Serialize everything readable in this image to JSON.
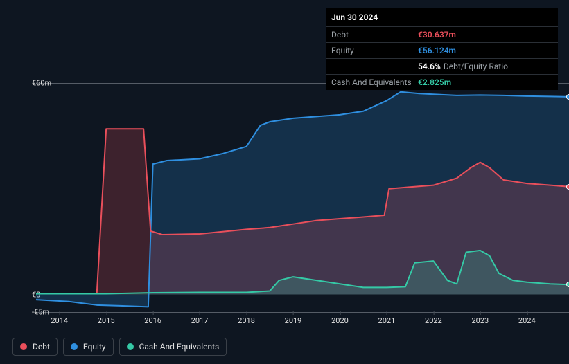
{
  "tooltip": {
    "title": "Jun 30 2024",
    "rows": [
      {
        "label": "Debt",
        "value": "€30.637m",
        "color": "#e94f5b"
      },
      {
        "label": "Equity",
        "value": "€56.124m",
        "color": "#2f8fe0"
      },
      {
        "label": "",
        "value": "54.6%",
        "suffix": "Debt/Equity Ratio",
        "color": "#ffffff"
      },
      {
        "label": "Cash And Equivalents",
        "value": "€2.825m",
        "color": "#35c9a6"
      }
    ]
  },
  "chart": {
    "type": "area",
    "background": "#0e1621",
    "grid_color": "#555c66",
    "axis_color": "#444b55",
    "x_domain": [
      2013.5,
      2024.9
    ],
    "y_domain": [
      -5,
      60
    ],
    "y_ticks": [
      {
        "v": 60,
        "label": "€60m"
      },
      {
        "v": 0,
        "label": "€0"
      },
      {
        "v": -5,
        "label": "-€5m"
      }
    ],
    "x_ticks": [
      2014,
      2015,
      2016,
      2017,
      2018,
      2019,
      2020,
      2021,
      2022,
      2023,
      2024
    ],
    "fill_opacity": 0.22,
    "line_width": 2,
    "series": [
      {
        "name": "Debt",
        "color": "#e94f5b",
        "points": [
          [
            2013.5,
            0.2
          ],
          [
            2014.8,
            0.2
          ],
          [
            2015.0,
            47
          ],
          [
            2015.8,
            47
          ],
          [
            2015.95,
            18
          ],
          [
            2016.2,
            17
          ],
          [
            2017.0,
            17.2
          ],
          [
            2018.0,
            18.5
          ],
          [
            2018.5,
            19
          ],
          [
            2019.0,
            20
          ],
          [
            2019.5,
            21
          ],
          [
            2020.0,
            21.5
          ],
          [
            2020.5,
            22
          ],
          [
            2020.95,
            22.5
          ],
          [
            2021.05,
            30
          ],
          [
            2021.5,
            30.5
          ],
          [
            2022.0,
            31
          ],
          [
            2022.5,
            33
          ],
          [
            2022.8,
            36
          ],
          [
            2023.0,
            37.5
          ],
          [
            2023.2,
            36
          ],
          [
            2023.5,
            32.5
          ],
          [
            2024.0,
            31.5
          ],
          [
            2024.5,
            31
          ],
          [
            2024.9,
            30.6
          ]
        ]
      },
      {
        "name": "Equity",
        "color": "#2f8fe0",
        "points": [
          [
            2013.5,
            -1.5
          ],
          [
            2014.2,
            -2
          ],
          [
            2014.8,
            -3
          ],
          [
            2015.3,
            -3.2
          ],
          [
            2015.9,
            -3.5
          ],
          [
            2016.0,
            37
          ],
          [
            2016.3,
            38
          ],
          [
            2017.0,
            38.5
          ],
          [
            2017.5,
            40
          ],
          [
            2018.0,
            42
          ],
          [
            2018.3,
            48
          ],
          [
            2018.5,
            49
          ],
          [
            2019.0,
            50
          ],
          [
            2019.5,
            50.5
          ],
          [
            2020.0,
            51
          ],
          [
            2020.5,
            52
          ],
          [
            2021.0,
            55
          ],
          [
            2021.3,
            57.5
          ],
          [
            2021.7,
            57
          ],
          [
            2022.0,
            56.8
          ],
          [
            2022.5,
            56.5
          ],
          [
            2023.0,
            56.6
          ],
          [
            2023.5,
            56.5
          ],
          [
            2024.0,
            56.3
          ],
          [
            2024.5,
            56.2
          ],
          [
            2024.9,
            56.1
          ]
        ]
      },
      {
        "name": "Cash And Equivalents",
        "color": "#35c9a6",
        "points": [
          [
            2013.5,
            0.2
          ],
          [
            2015.0,
            0.2
          ],
          [
            2016.0,
            0.5
          ],
          [
            2017.0,
            0.6
          ],
          [
            2018.0,
            0.6
          ],
          [
            2018.5,
            1.0
          ],
          [
            2018.7,
            4.0
          ],
          [
            2019.0,
            5.0
          ],
          [
            2019.5,
            4.0
          ],
          [
            2020.0,
            3.0
          ],
          [
            2020.5,
            2.0
          ],
          [
            2021.0,
            2.0
          ],
          [
            2021.4,
            2.2
          ],
          [
            2021.6,
            9.0
          ],
          [
            2022.0,
            9.5
          ],
          [
            2022.3,
            4.0
          ],
          [
            2022.5,
            3.0
          ],
          [
            2022.7,
            12
          ],
          [
            2023.0,
            12.5
          ],
          [
            2023.2,
            11
          ],
          [
            2023.4,
            6
          ],
          [
            2023.7,
            4
          ],
          [
            2024.0,
            3.5
          ],
          [
            2024.5,
            3.0
          ],
          [
            2024.9,
            2.8
          ]
        ]
      }
    ]
  },
  "legend": [
    {
      "label": "Debt",
      "color": "#e94f5b"
    },
    {
      "label": "Equity",
      "color": "#2f8fe0"
    },
    {
      "label": "Cash And Equivalents",
      "color": "#35c9a6"
    }
  ]
}
